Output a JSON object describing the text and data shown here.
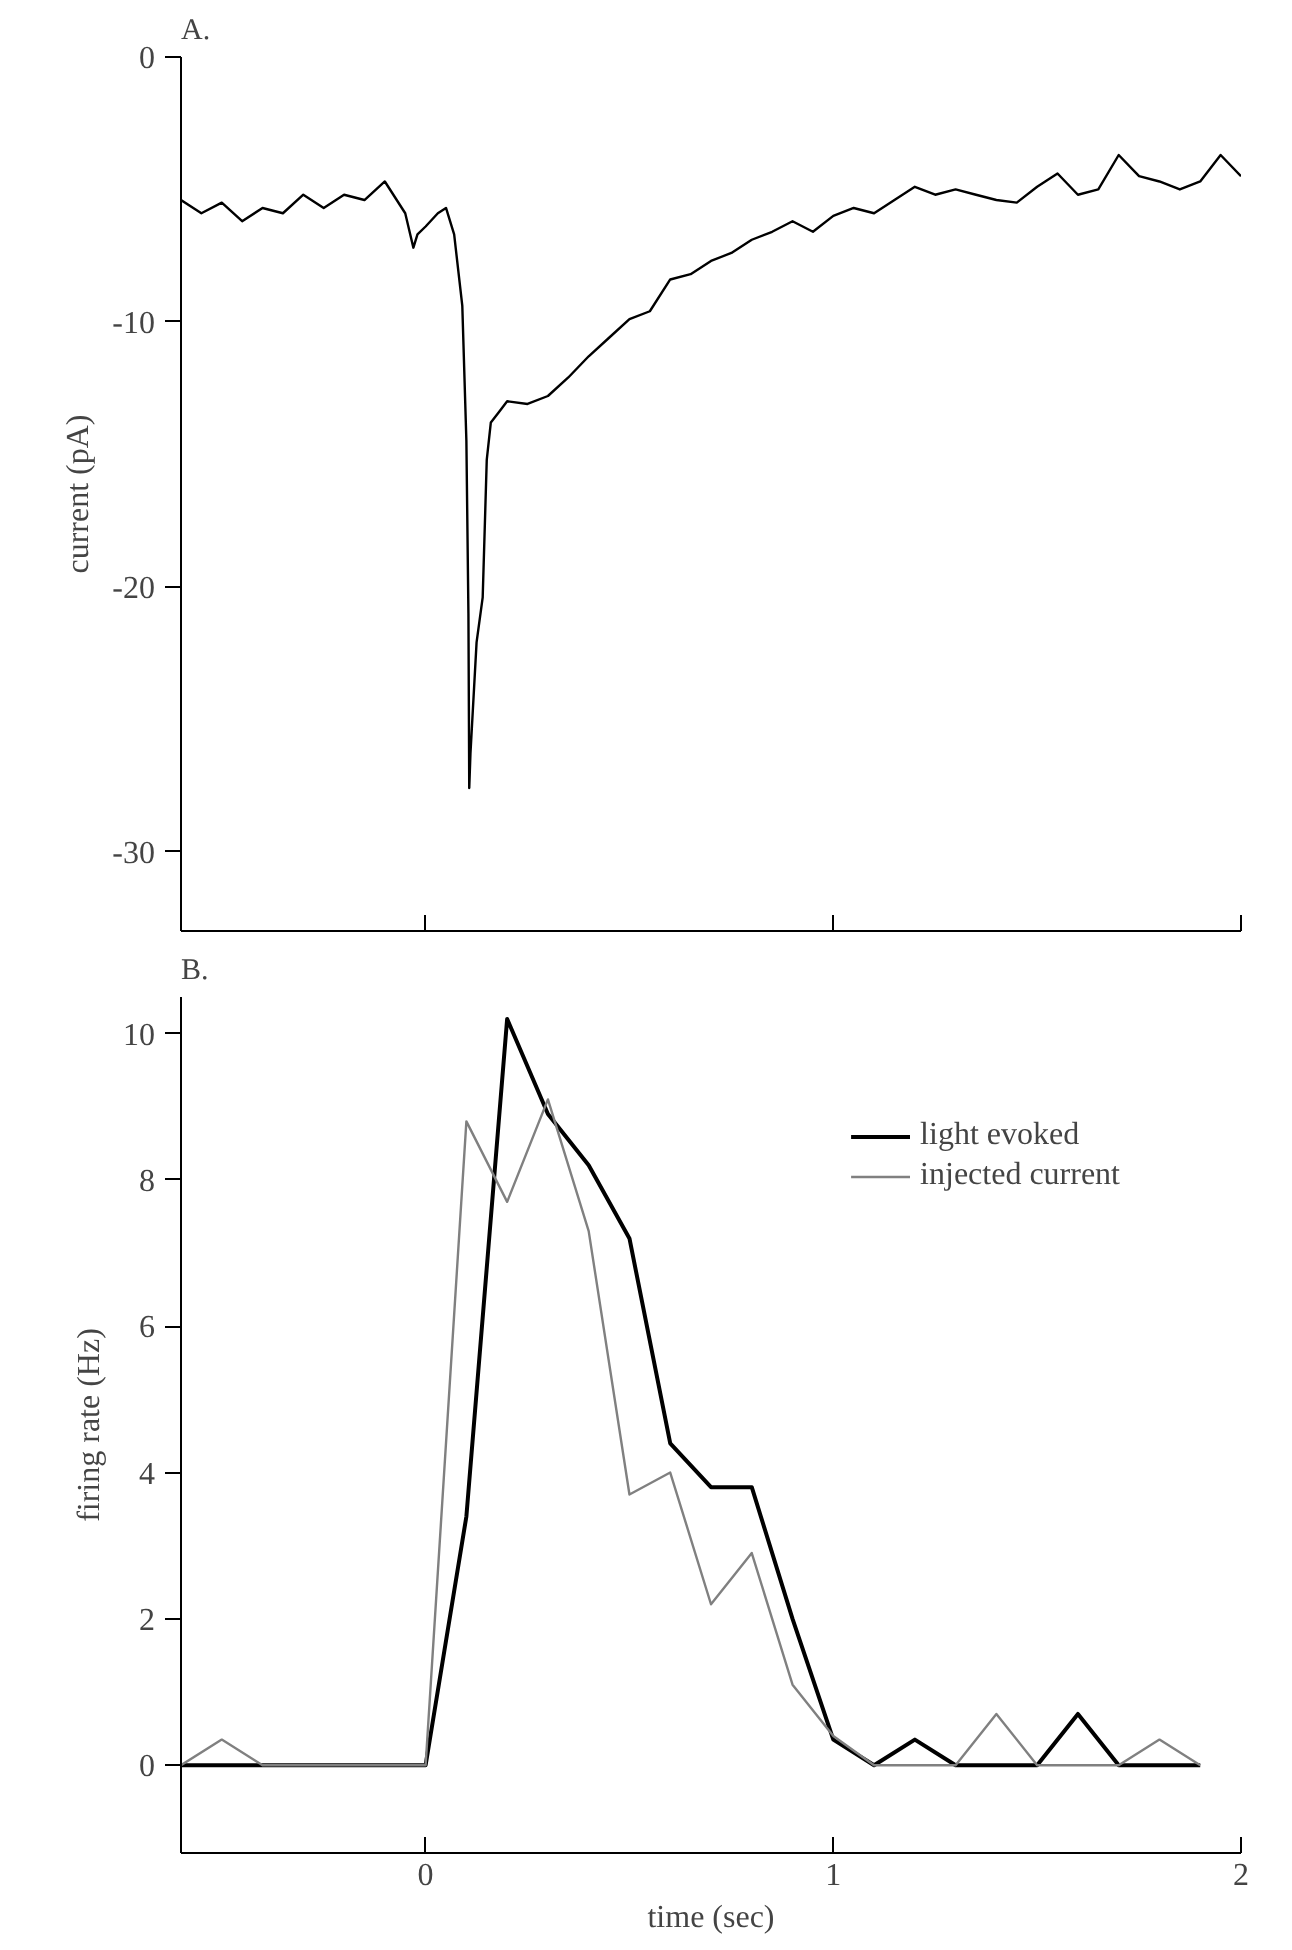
{
  "chart_data": [
    {
      "type": "line",
      "title": "A.",
      "ylabel": "current (pA)",
      "xlim": [
        -0.6,
        2
      ],
      "xticks": [
        {
          "value": 0,
          "label": null
        },
        {
          "value": 1,
          "label": null
        },
        {
          "value": 2,
          "label": null
        }
      ],
      "ylim": [
        -33,
        0
      ],
      "yticks": [
        0,
        -10,
        -20,
        -30
      ],
      "tick_labels": "y",
      "grid": false,
      "legend": false,
      "series": [
        {
          "color": "#000000",
          "x": [
            -0.6,
            -0.55,
            -0.5,
            -0.45,
            -0.4,
            -0.35,
            -0.3,
            -0.25,
            -0.2,
            -0.15,
            -0.1,
            -0.05,
            -0.03,
            -0.02,
            0,
            0.03,
            0.05,
            0.07,
            0.09,
            0.1,
            0.105,
            0.107,
            0.11,
            0.125,
            0.14,
            0.15,
            0.16,
            0.18,
            0.2,
            0.25,
            0.3,
            0.35,
            0.4,
            0.45,
            0.5,
            0.55,
            0.6,
            0.65,
            0.7,
            0.75,
            0.8,
            0.85,
            0.9,
            0.95,
            1.0,
            1.05,
            1.1,
            1.15,
            1.2,
            1.25,
            1.3,
            1.35,
            1.4,
            1.45,
            1.5,
            1.55,
            1.6,
            1.65,
            1.7,
            1.75,
            1.8,
            1.85,
            1.9,
            1.95,
            2.0
          ],
          "values": [
            -5.4,
            -5.9,
            -5.5,
            -6.2,
            -5.7,
            -5.9,
            -5.2,
            -5.7,
            -5.2,
            -5.4,
            -4.7,
            -5.9,
            -7.2,
            -6.7,
            -6.4,
            -5.9,
            -5.7,
            -6.7,
            -9.4,
            -14.5,
            -21,
            -27.6,
            -26.3,
            -22.1,
            -20.4,
            -15.2,
            -13.8,
            -13.4,
            -13.0,
            -13.1,
            -12.8,
            -12.1,
            -11.3,
            -10.6,
            -9.9,
            -9.6,
            -8.4,
            -8.2,
            -7.7,
            -7.4,
            -6.9,
            -6.6,
            -6.2,
            -6.6,
            -6.0,
            -5.7,
            -5.9,
            -5.4,
            -4.9,
            -5.2,
            -5.0,
            -5.2,
            -5.4,
            -5.5,
            -4.9,
            -4.4,
            -5.2,
            -5.0,
            -3.7,
            -4.5,
            -4.7,
            -5.0,
            -4.7,
            -3.7,
            -4.5
          ]
        }
      ]
    },
    {
      "type": "line",
      "title": "B.",
      "xlabel": "time (sec)",
      "ylabel": "firing rate (Hz)",
      "xlim": [
        -0.6,
        2
      ],
      "xticks": [
        0,
        1,
        2
      ],
      "ylim": [
        -1.2,
        10.5
      ],
      "yticks": [
        0,
        2,
        4,
        6,
        8,
        10
      ],
      "grid": false,
      "legend": "top right",
      "x": [
        -0.6,
        -0.5,
        -0.4,
        -0.3,
        -0.2,
        -0.1,
        0,
        0.1,
        0.2,
        0.3,
        0.4,
        0.5,
        0.6,
        0.7,
        0.8,
        0.9,
        1.0,
        1.1,
        1.2,
        1.3,
        1.4,
        1.5,
        1.6,
        1.7,
        1.8,
        1.9
      ],
      "series": [
        {
          "name": "light evoked",
          "color": "#000000",
          "values": [
            0,
            0,
            0,
            0,
            0,
            0,
            0,
            3.4,
            10.2,
            8.9,
            8.2,
            7.2,
            4.4,
            3.8,
            3.8,
            2.0,
            0.35,
            0,
            0.35,
            0,
            0,
            0,
            0.7,
            0,
            0,
            0
          ]
        },
        {
          "name": "injected current",
          "color": "#808080",
          "values": [
            0,
            0.35,
            0,
            0,
            0,
            0,
            0,
            8.8,
            7.7,
            9.1,
            7.3,
            3.7,
            4.0,
            2.2,
            2.9,
            1.1,
            0.4,
            0,
            0,
            0,
            0.7,
            0,
            0,
            0,
            0.35,
            0
          ]
        }
      ]
    }
  ]
}
